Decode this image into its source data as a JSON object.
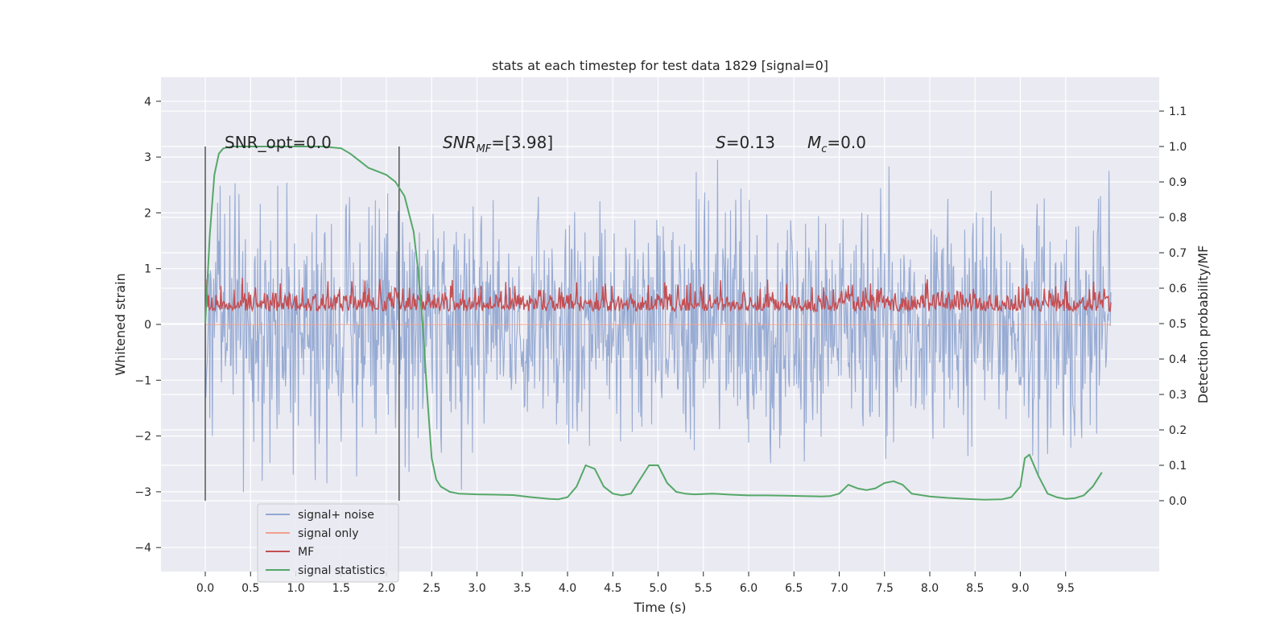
{
  "chart_data": {
    "type": "line",
    "title": "stats at each timestep for test data 1829 [signal=0]",
    "xlabel": "Time (s)",
    "ylabel": "Whitened strain",
    "ylabel_right": "Detection probability/MF",
    "xlim": [
      -0.5,
      10.5
    ],
    "ylim": [
      -4.4,
      4.4
    ],
    "ylim_right": [
      -0.2,
      1.2
    ],
    "x_ticks": [
      "0.0",
      "0.5",
      "1.0",
      "1.5",
      "2.0",
      "2.5",
      "3.0",
      "3.5",
      "4.0",
      "4.5",
      "5.0",
      "5.5",
      "6.0",
      "6.5",
      "7.0",
      "7.5",
      "8.0",
      "8.5",
      "9.0",
      "9.5"
    ],
    "y_ticks": [
      "4",
      "3",
      "2",
      "1",
      "0",
      "−1",
      "−2",
      "−3",
      "−4"
    ],
    "y_ticks_right": [
      "1.1",
      "1.0",
      "0.9",
      "0.8",
      "0.7",
      "0.6",
      "0.5",
      "0.4",
      "0.3",
      "0.2",
      "0.1",
      "0.0"
    ],
    "grid": true,
    "legend_position": "lower-left",
    "annotations": {
      "snr_opt": "SNR_opt=0.0",
      "snr_mf_main": "SNR",
      "snr_mf_sub": "MF",
      "snr_mf_value": "=[3.98]",
      "s_label": "S",
      "s_value": "=0.13",
      "mc_label": "M",
      "mc_sub": "c",
      "mc_value": "=0.0"
    },
    "vertical_lines_x": [
      0.0,
      2.14
    ],
    "series": [
      {
        "name": "signal+ noise",
        "color": "#92a8d1",
        "axis": "left",
        "description_points": {
          "x": [
            0.0,
            10.0
          ],
          "amplitude_range": [
            -4.0,
            4.0
          ]
        }
      },
      {
        "name": "signal only",
        "color": "#f0a08a",
        "axis": "left",
        "x": [
          0.0,
          10.0
        ],
        "y": [
          0.0,
          0.0
        ]
      },
      {
        "name": "MF",
        "color": "#c44e52",
        "axis": "right",
        "range": [
          0.5,
          0.63
        ]
      },
      {
        "name": "signal statistics",
        "color": "#55a868",
        "axis": "right",
        "x": [
          0.0,
          0.05,
          0.1,
          0.15,
          0.2,
          0.3,
          0.5,
          0.8,
          1.0,
          1.3,
          1.5,
          1.6,
          1.7,
          1.8,
          1.9,
          2.0,
          2.1,
          2.2,
          2.3,
          2.35,
          2.4,
          2.45,
          2.5,
          2.55,
          2.6,
          2.7,
          2.8,
          3.0,
          3.2,
          3.4,
          3.6,
          3.8,
          3.9,
          4.0,
          4.1,
          4.2,
          4.3,
          4.4,
          4.5,
          4.6,
          4.7,
          4.8,
          4.9,
          5.0,
          5.1,
          5.2,
          5.3,
          5.4,
          5.6,
          5.8,
          6.0,
          6.2,
          6.4,
          6.6,
          6.8,
          6.9,
          7.0,
          7.1,
          7.2,
          7.3,
          7.4,
          7.5,
          7.6,
          7.7,
          7.8,
          8.0,
          8.2,
          8.4,
          8.6,
          8.8,
          8.9,
          9.0,
          9.05,
          9.1,
          9.2,
          9.3,
          9.4,
          9.5,
          9.6,
          9.7,
          9.8,
          9.9
        ],
        "y": [
          0.5,
          0.75,
          0.92,
          0.98,
          0.995,
          1.0,
          1.0,
          1.0,
          1.0,
          1.0,
          0.995,
          0.98,
          0.96,
          0.94,
          0.93,
          0.92,
          0.9,
          0.86,
          0.76,
          0.65,
          0.5,
          0.3,
          0.12,
          0.06,
          0.04,
          0.025,
          0.02,
          0.018,
          0.017,
          0.016,
          0.01,
          0.005,
          0.004,
          0.01,
          0.04,
          0.1,
          0.09,
          0.04,
          0.02,
          0.015,
          0.02,
          0.06,
          0.1,
          0.1,
          0.05,
          0.025,
          0.02,
          0.018,
          0.02,
          0.017,
          0.015,
          0.015,
          0.014,
          0.013,
          0.012,
          0.013,
          0.02,
          0.045,
          0.035,
          0.03,
          0.035,
          0.05,
          0.055,
          0.045,
          0.02,
          0.012,
          0.008,
          0.005,
          0.003,
          0.004,
          0.01,
          0.04,
          0.12,
          0.13,
          0.07,
          0.02,
          0.01,
          0.005,
          0.007,
          0.015,
          0.04,
          0.08
        ]
      }
    ]
  }
}
